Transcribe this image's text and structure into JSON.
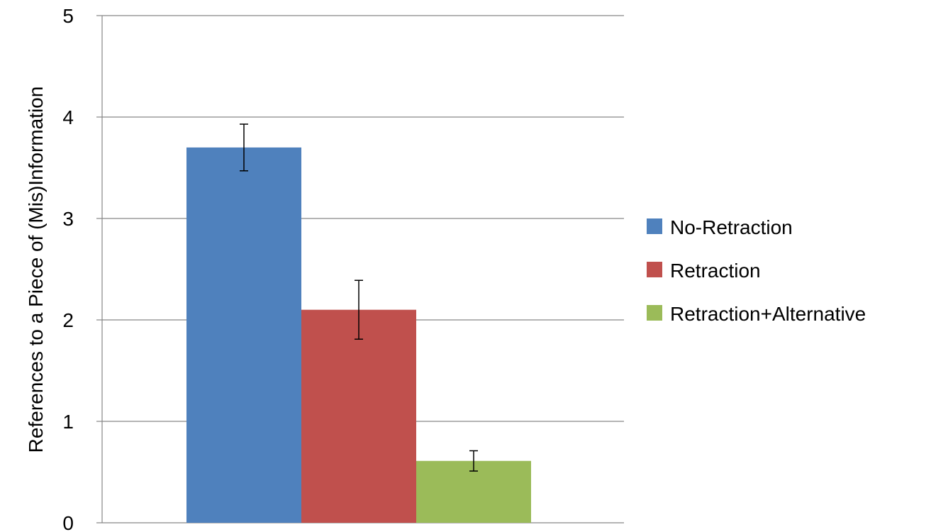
{
  "chart_data": {
    "type": "bar",
    "title": "",
    "xlabel": "",
    "ylabel": "References to a Piece of (Mis)Information",
    "ylim": [
      0,
      5
    ],
    "yticks": [
      0,
      1,
      2,
      3,
      4,
      5
    ],
    "grid": true,
    "legend_position": "right",
    "series": [
      {
        "name": "No-Retraction",
        "value": 3.7,
        "error": 0.23,
        "color": "#4f81bd"
      },
      {
        "name": "Retraction",
        "value": 2.1,
        "error": 0.29,
        "color": "#c0504d"
      },
      {
        "name": "Retraction+Alternative",
        "value": 0.61,
        "error": 0.1,
        "color": "#9bbb59"
      }
    ]
  }
}
